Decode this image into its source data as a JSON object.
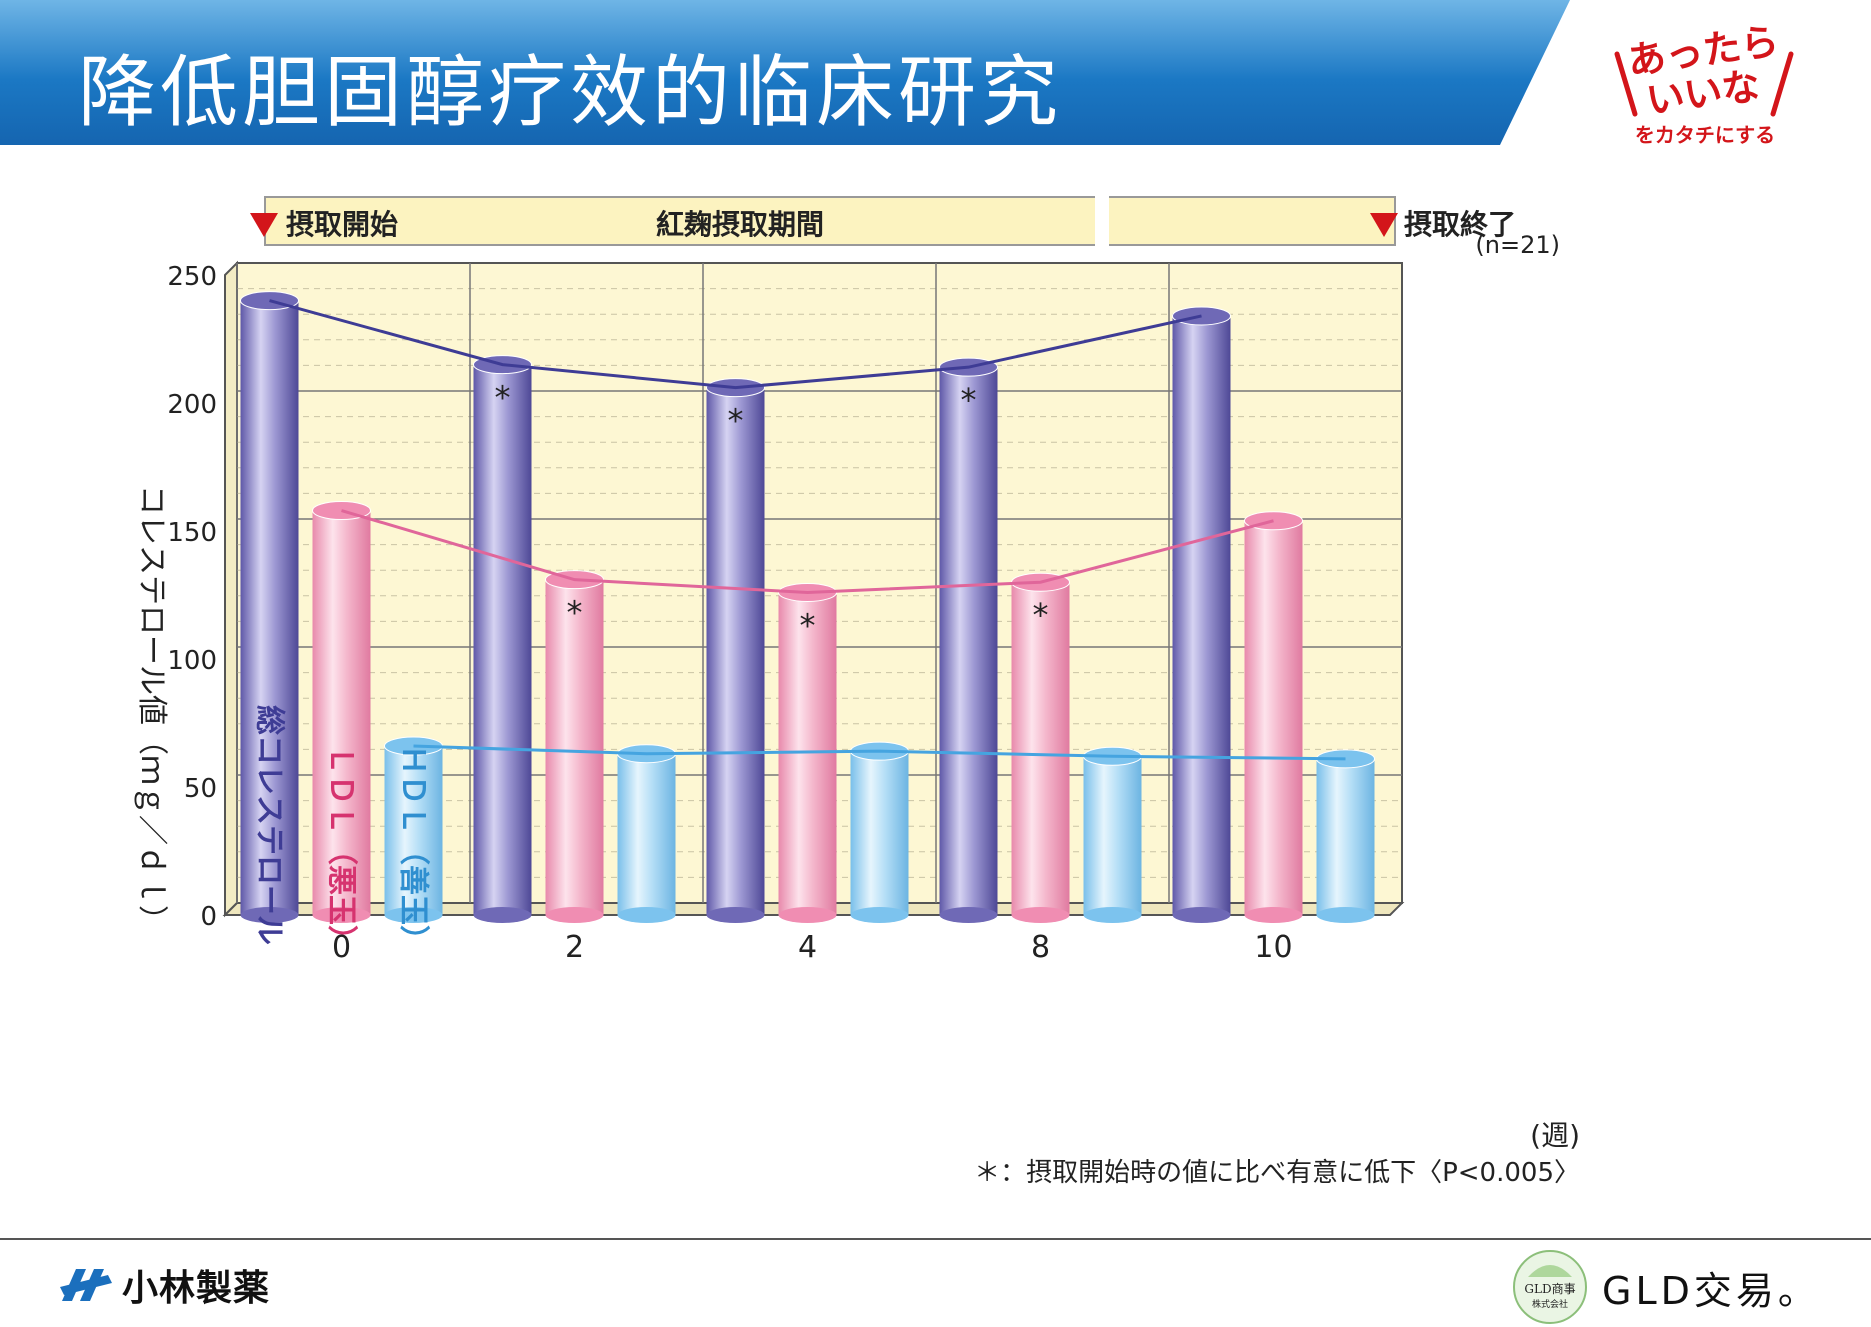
{
  "slide": {
    "title": "降低胆固醇疗效的临床研究",
    "brand_logo_line1": "あったら",
    "brand_logo_line2": "いいな",
    "brand_logo_tagline": "をカタチにする",
    "footer_company": "小林製薬",
    "footer_partner_badge_line1": "GLD商事",
    "footer_partner_badge_line2": "株式会社",
    "footer_partner": "GLD交易。"
  },
  "colors": {
    "header_blue": "#1b78c4",
    "header_blue_light": "#6fb5e6",
    "brand_red": "#d3151a",
    "total_purple": "#8c86c8",
    "ldl_pink": "#f2a7c2",
    "hdl_blue": "#9ad2f3",
    "total_line": "#3e3c95",
    "ldl_line": "#e0669a",
    "hdl_line": "#45a4e0",
    "plot_bg": "#fdf7d3",
    "banner_bg": "#fcf3c0"
  },
  "chart_data": {
    "type": "bar",
    "x": [
      "0",
      "2",
      "4",
      "8",
      "10"
    ],
    "xlabel": "(週)",
    "ylabel": "コレステロール値（ｍｇ／ｄｌ）",
    "ylim": [
      0,
      250
    ],
    "yticks": [
      0,
      50,
      100,
      150,
      200,
      250
    ],
    "grid": true,
    "note_n": "(n=21)",
    "banner_start": "摂取開始",
    "banner_period": "紅麹摂取期間",
    "banner_end": "摂取終了",
    "footnote": "＊：摂取開始時の値に比べ有意に低下〈P<0.005〉",
    "series": [
      {
        "name": "総コレステロール",
        "values": [
          240,
          215,
          206,
          214,
          234
        ],
        "significant": [
          false,
          true,
          true,
          true,
          false
        ],
        "color": "#8c86c8",
        "line_color": "#3e3c95"
      },
      {
        "name": "ＬＤＬ（悪玉）",
        "values": [
          158,
          131,
          126,
          130,
          154
        ],
        "significant": [
          false,
          true,
          true,
          true,
          false
        ],
        "color": "#f2a7c2",
        "line_color": "#e0669a"
      },
      {
        "name": "ＨＤＬ（善玉）",
        "values": [
          66,
          63,
          64,
          62,
          61
        ],
        "significant": [
          false,
          false,
          false,
          false,
          false
        ],
        "color": "#9ad2f3",
        "line_color": "#45a4e0"
      }
    ],
    "legend_labels": [
      {
        "series": 0,
        "text": "総コレステロール"
      },
      {
        "series": 1,
        "text": "ＬＤＬ（悪玉）"
      },
      {
        "series": 2,
        "text": "ＨＤＬ（善玉）"
      }
    ]
  }
}
